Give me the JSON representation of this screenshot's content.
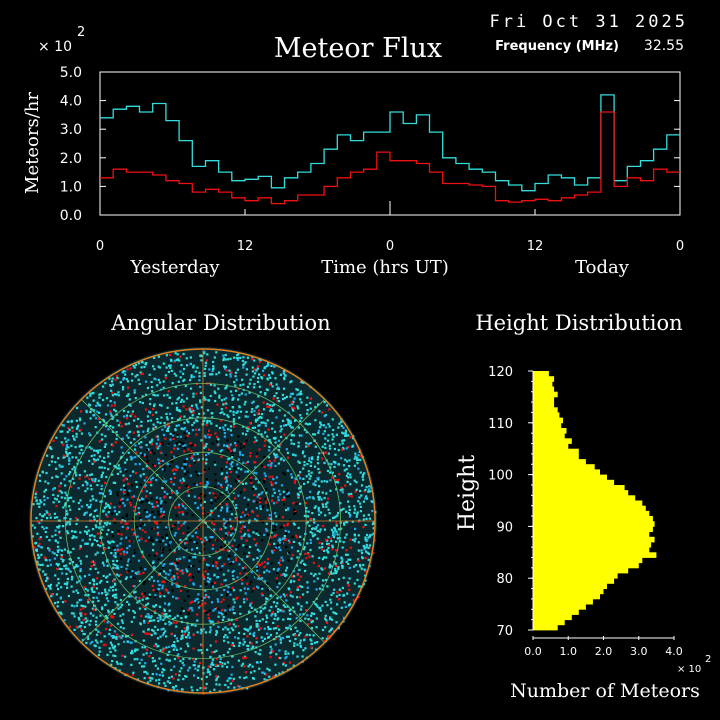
{
  "header": {
    "date": "Fri Oct 31 2025",
    "title": "Meteor Flux",
    "frequency_label": "Frequency (MHz)",
    "frequency_value": "32.55",
    "scale_mult": "× 10",
    "scale_exp": "2"
  },
  "colors": {
    "background": "#000000",
    "cyan": "#33dddd",
    "red": "#ee1111",
    "yellow": "#ffff00",
    "axis": "#ffffff",
    "ring_orange": "#e08020",
    "ring_green": "#66bb66",
    "dot_blue": "#22aaee"
  },
  "chart_data": [
    {
      "type": "line",
      "title": "Meteor Flux",
      "ylabel": "Meteors/hr",
      "xlabel": "Time (hrs UT)",
      "y_multiplier": "× 10^2",
      "ylim": [
        0,
        5
      ],
      "xlim": [
        0,
        48
      ],
      "x_ticks": [
        "0",
        "12",
        "0",
        "12",
        "0"
      ],
      "y_ticks": [
        "0.0",
        "1.0",
        "2.0",
        "3.0",
        "4.0",
        "5.0"
      ],
      "day_labels": [
        "Yesterday",
        "Today"
      ],
      "series": [
        {
          "color": "cyan",
          "values": [
            3.4,
            3.7,
            3.8,
            3.6,
            3.9,
            3.3,
            2.6,
            1.7,
            1.9,
            1.5,
            1.2,
            1.25,
            1.35,
            0.95,
            1.3,
            1.5,
            1.8,
            2.3,
            2.8,
            2.6,
            2.9,
            2.9,
            3.6,
            3.2,
            3.5,
            2.9,
            2.0,
            1.8,
            1.6,
            1.5,
            1.2,
            1.05,
            0.85,
            1.1,
            1.4,
            1.3,
            1.05,
            1.3,
            4.2,
            1.2,
            1.7,
            1.9,
            2.3,
            2.8
          ]
        },
        {
          "color": "red",
          "values": [
            1.3,
            1.6,
            1.5,
            1.5,
            1.4,
            1.2,
            1.1,
            0.8,
            0.9,
            0.8,
            0.6,
            0.5,
            0.6,
            0.4,
            0.5,
            0.7,
            0.7,
            1.0,
            1.3,
            1.5,
            1.6,
            2.2,
            1.9,
            1.9,
            1.8,
            1.5,
            1.1,
            1.1,
            1.05,
            1.0,
            0.5,
            0.45,
            0.5,
            0.55,
            0.5,
            0.6,
            0.7,
            0.8,
            3.6,
            1.0,
            1.3,
            1.2,
            1.6,
            1.5
          ]
        }
      ]
    },
    {
      "type": "scatter",
      "title": "Angular Distribution",
      "rings": 5,
      "spokes": 8
    },
    {
      "type": "bar",
      "orientation": "horizontal",
      "title": "Height Distribution",
      "ylabel": "Height",
      "xlabel": "Number of Meteors",
      "x_multiplier": "× 10^2",
      "ylim": [
        70,
        120
      ],
      "xlim": [
        0,
        4
      ],
      "y_ticks": [
        "120",
        "110",
        "100",
        "90",
        "80",
        "70"
      ],
      "x_ticks": [
        "0.0",
        "1.0",
        "2.0",
        "3.0",
        "4.0"
      ],
      "heights": [
        119.5,
        118.5,
        117.5,
        116.5,
        115.5,
        114.5,
        113.5,
        112.5,
        111.5,
        110.5,
        109.5,
        108.5,
        107.5,
        106.5,
        105.5,
        104.5,
        103.5,
        102.5,
        101.5,
        100.5,
        99.5,
        98.5,
        97.5,
        96.5,
        95.5,
        94.5,
        93.5,
        92.5,
        91.5,
        90.5,
        89.5,
        88.5,
        87.5,
        86.5,
        85.5,
        84.5,
        83.5,
        82.5,
        81.5,
        80.5,
        79.5,
        78.5,
        77.5,
        76.5,
        75.5,
        74.5,
        73.5,
        72.5,
        71.5,
        70.5
      ],
      "values": [
        0.45,
        0.6,
        0.55,
        0.6,
        0.7,
        0.6,
        0.6,
        0.7,
        0.75,
        0.85,
        0.8,
        0.95,
        0.9,
        1.1,
        1.0,
        1.3,
        1.3,
        1.5,
        1.75,
        1.9,
        2.1,
        2.3,
        2.6,
        2.7,
        2.9,
        3.1,
        3.2,
        3.3,
        3.4,
        3.45,
        3.4,
        3.3,
        3.45,
        3.35,
        3.3,
        3.5,
        3.1,
        3.0,
        2.7,
        2.4,
        2.3,
        2.1,
        2.0,
        1.9,
        1.7,
        1.5,
        1.3,
        1.1,
        0.9,
        0.7
      ]
    }
  ]
}
